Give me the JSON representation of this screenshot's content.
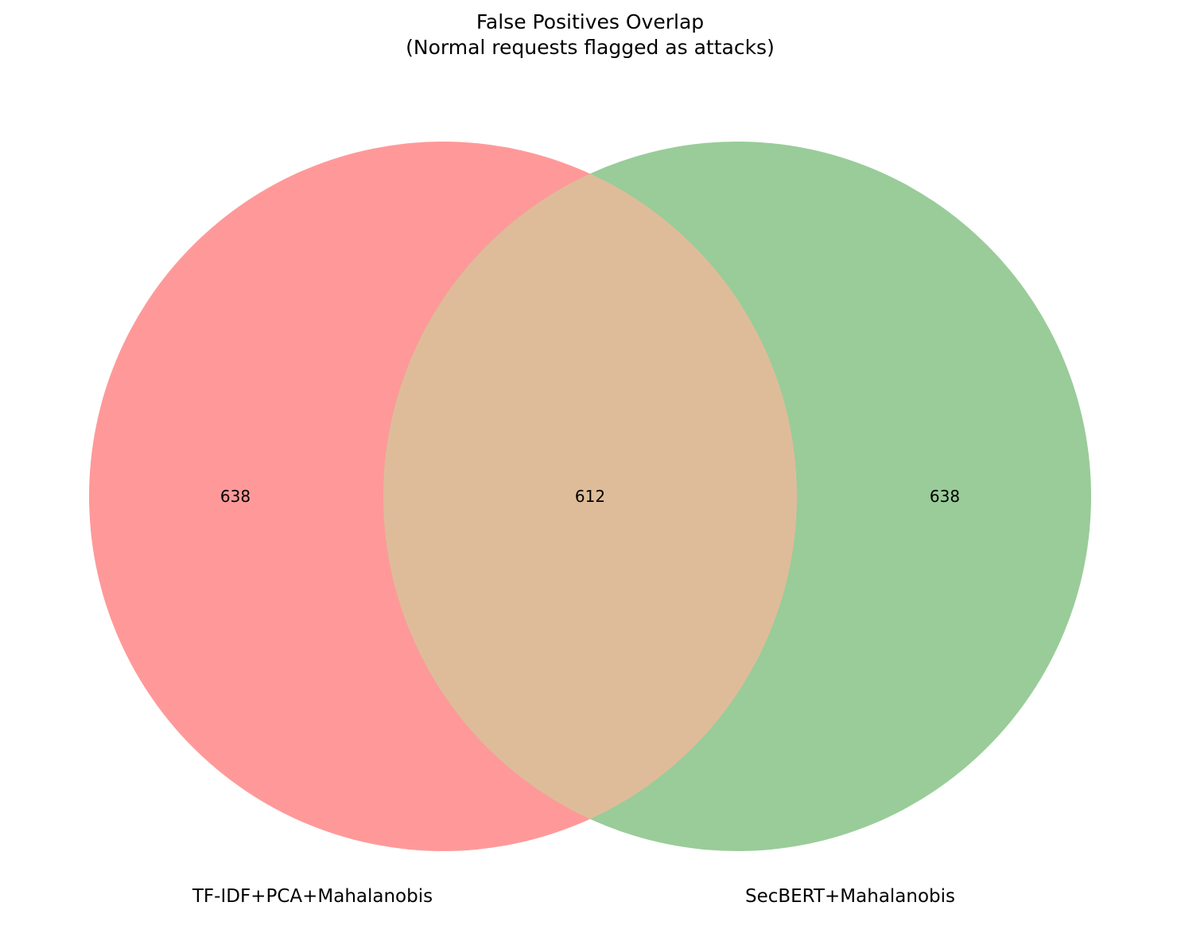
{
  "title": {
    "line1": "False Positives Overlap",
    "line2": "(Normal requests flagged as attacks)"
  },
  "sets": [
    {
      "name": "TF-IDF+PCA+Mahalanobis",
      "only_count": "638",
      "color": "#ff9999"
    },
    {
      "name": "SecBERT+Mahalanobis",
      "only_count": "638",
      "color": "#99cc99"
    }
  ],
  "intersection": {
    "count": "612",
    "color": "#dfbc99"
  }
}
